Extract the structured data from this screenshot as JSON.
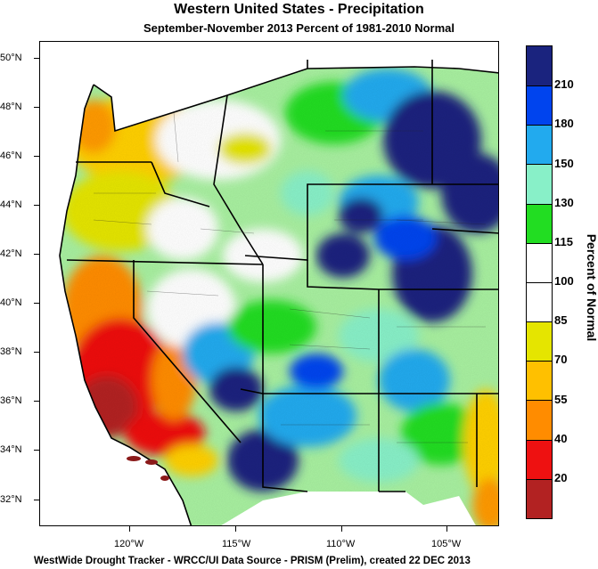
{
  "title": "Western United States - Precipitation",
  "subtitle": "September-November 2013  Percent of 1981-2010 Normal",
  "footer": "WestWide Drought Tracker - WRCC/UI  Data Source - PRISM (Prelim), created 22 DEC 2013",
  "legend": {
    "title": "Percent of Normal",
    "labels": [
      "20",
      "40",
      "55",
      "70",
      "85",
      "100",
      "115",
      "130",
      "150",
      "180",
      "210"
    ],
    "colors": [
      "#b22222",
      "#ee1111",
      "#ff8c00",
      "#ffc000",
      "#e5e500",
      "#ffffff",
      "#ffffff",
      "#22dd22",
      "#88f0c8",
      "#22aaee",
      "#0044ee",
      "#1a237e"
    ]
  },
  "lat_labels": [
    "50°N",
    "48°N",
    "46°N",
    "44°N",
    "42°N",
    "40°N",
    "38°N",
    "36°N",
    "34°N",
    "32°N"
  ],
  "lon_labels": [
    "120°W",
    "115°W",
    "110°W",
    "105°W"
  ]
}
